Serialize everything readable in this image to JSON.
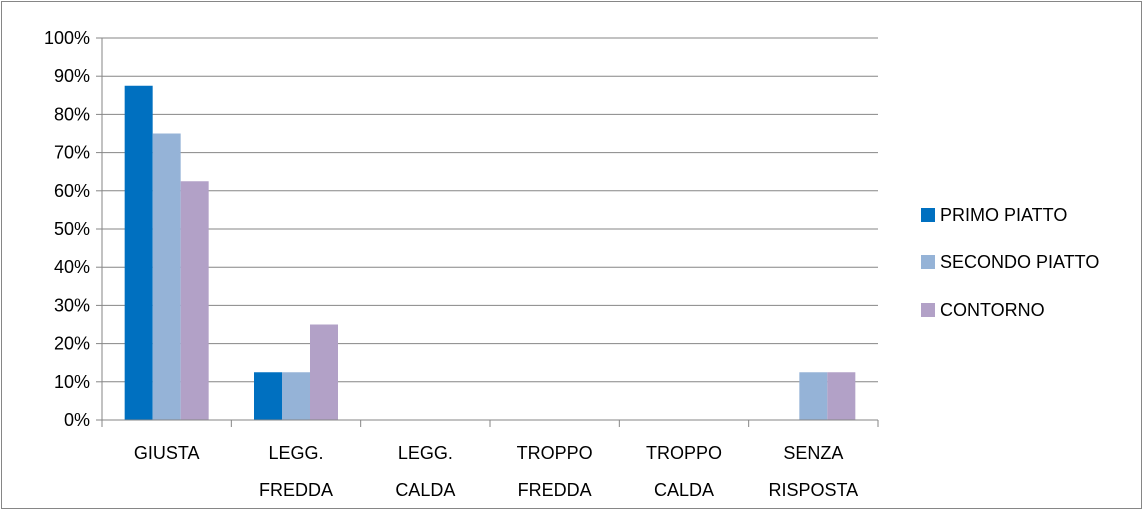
{
  "chart_data": {
    "type": "bar",
    "categories": [
      [
        "GIUSTA"
      ],
      [
        "LEGG.",
        "FREDDA"
      ],
      [
        "LEGG.",
        "CALDA"
      ],
      [
        "TROPPO",
        "FREDDA"
      ],
      [
        "TROPPO",
        "CALDA"
      ],
      [
        "SENZA",
        "RISPOSTA"
      ]
    ],
    "series": [
      {
        "name": "PRIMO PIATTO",
        "color": "#0070C0",
        "values": [
          87.5,
          12.5,
          0,
          0,
          0,
          0
        ]
      },
      {
        "name": "SECONDO PIATTO",
        "color": "#95B3D7",
        "values": [
          75,
          12.5,
          0,
          0,
          0,
          12.5
        ]
      },
      {
        "name": "CONTORNO",
        "color": "#B2A1C7",
        "values": [
          62.5,
          25,
          0,
          0,
          0,
          12.5
        ]
      }
    ],
    "ylim": [
      0,
      100
    ],
    "yticks": [
      "0%",
      "10%",
      "20%",
      "30%",
      "40%",
      "50%",
      "60%",
      "70%",
      "80%",
      "90%",
      "100%"
    ],
    "grid": true,
    "legend_position": "right",
    "title": "",
    "xlabel": "",
    "ylabel": ""
  }
}
